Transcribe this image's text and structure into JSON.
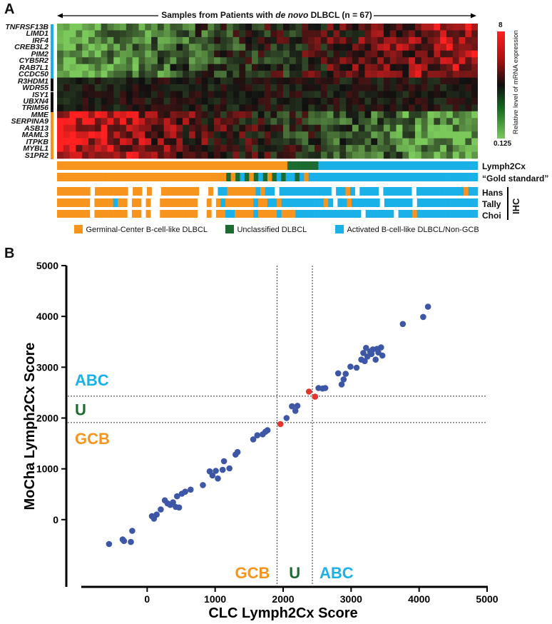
{
  "panel_a": {
    "label": "A",
    "header": {
      "prefix": "Samples from Patients with ",
      "italic": "de novo",
      "suffix": " DLBCL (n = 67)"
    },
    "genes": [
      "TNFRSF13B",
      "LIMD1",
      "IRF4",
      "CREB3L2",
      "PIM2",
      "CYB5R2",
      "RAB7L1",
      "CCDC50",
      "R3HDM1",
      "WDR55",
      "ISY1",
      "UBXN4",
      "TRIM56",
      "MME",
      "SERPINA9",
      "ASB13",
      "MAML3",
      "ITPKB",
      "MYBL1",
      "S1PR2"
    ],
    "gene_groups": [
      "abc",
      "abc",
      "abc",
      "abc",
      "abc",
      "abc",
      "abc",
      "abc",
      "ref",
      "ref",
      "ref",
      "ref",
      "ref",
      "gcb",
      "gcb",
      "gcb",
      "gcb",
      "gcb",
      "gcb",
      "gcb"
    ],
    "colorbar": {
      "max_label": "8",
      "min_label": "0.125",
      "title": "Relative level of mRNA expression"
    },
    "tracks": {
      "lymph2cx_label": "Lymph2Cx",
      "gold_label": "“Gold standard”",
      "hans_label": "Hans",
      "tally_label": "Tally",
      "choi_label": "Choi",
      "ihc_label": "IHC"
    },
    "legend": [
      {
        "label": "Germinal-Center B-cell-like DLBCL",
        "color": "#f7941d"
      },
      {
        "label": "Unclassified DLBCL",
        "color": "#1e6b32"
      },
      {
        "label": "Activated B-cell-like DLBCL/Non-GCB",
        "color": "#1ab1e8"
      }
    ],
    "lymph2cx_calls": "GGGGGGGGGGGGGGGGGGGGGGGGGGGGGGGGGGGGGGGGGGGGGGGGGGGGUUUUUUUAAAAAAAAAAAAAAAAAAAAAAAAAAAAAAAAAAAA",
    "gold_calls": "GGGGGGGGGGGGGGGGGGGGGGGGGGGGGGGGGGGGGUGUAUGUAUGUAUAAUAGAAAAAAAAAAAAAAAAAAAAAAAAAAAAAAAAAAAAA",
    "hans_calls": "GGGGGGG.GGGGGGG.GG.G..GGGGGGGG..G.AAGGGGGGAGAA.AAAAAAAAAAA.AAGA.AAAA.AAAAAA.AAAAAAAAAAGAA",
    "tally_calls": "GGGGGGG.GGGGAGG.GG.G..GGGGGGGG..G.GAGGGGGGAGGAAGAAAAAAAAAGA.AAGAAAAAA.AAAAAA.AAAAAAAAAAAAA",
    "choi_calls": "GGGGGGG.GGGGGGG.GG.G..GGGGGGGG..G.GGAAGGGGAGGGGAGGGAAAAAAAAAAAAAA.AAAAAA.AAAGAAAAAAAAAAAAA"
  },
  "panel_b": {
    "label": "B"
  },
  "chart_data": {
    "type": "scatter",
    "xlabel": "CLC Lymph2Cx Score",
    "ylabel": "MoCha Lymph2Cx Score",
    "xlim": [
      -1000,
      5000
    ],
    "ylim": [
      -1000,
      5000
    ],
    "xticks": [
      0,
      1000,
      2000,
      3000,
      4000,
      5000
    ],
    "yticks": [
      0,
      1000,
      2000,
      3000,
      4000,
      5000
    ],
    "thresholds": {
      "x_low": 1910,
      "x_high": 2430,
      "y_low": 1910,
      "y_high": 2430
    },
    "region_labels": {
      "y_abc": "ABC",
      "y_u": "U",
      "y_gcb": "GCB",
      "x_gcb": "GCB",
      "x_u": "U",
      "x_abc": "ABC"
    },
    "region_colors": {
      "abc": "#1ab1e8",
      "u": "#1e6b32",
      "gcb": "#f7941d"
    },
    "series": [
      {
        "color": "#3d56a6",
        "points": [
          [
            -560,
            -480
          ],
          [
            -360,
            -390
          ],
          [
            -340,
            -420
          ],
          [
            -240,
            -440
          ],
          [
            -220,
            -220
          ],
          [
            70,
            70
          ],
          [
            100,
            20
          ],
          [
            140,
            100
          ],
          [
            200,
            200
          ],
          [
            260,
            380
          ],
          [
            300,
            320
          ],
          [
            340,
            290
          ],
          [
            380,
            340
          ],
          [
            420,
            250
          ],
          [
            440,
            460
          ],
          [
            470,
            240
          ],
          [
            510,
            510
          ],
          [
            560,
            550
          ],
          [
            640,
            590
          ],
          [
            820,
            680
          ],
          [
            920,
            950
          ],
          [
            960,
            870
          ],
          [
            1010,
            960
          ],
          [
            1040,
            810
          ],
          [
            1110,
            980
          ],
          [
            1130,
            1150
          ],
          [
            1210,
            1010
          ],
          [
            1300,
            1280
          ],
          [
            1330,
            1330
          ],
          [
            1560,
            1580
          ],
          [
            1620,
            1660
          ],
          [
            1700,
            1680
          ],
          [
            1740,
            1730
          ],
          [
            1770,
            1760
          ],
          [
            2050,
            2000
          ],
          [
            2130,
            2230
          ],
          [
            2180,
            2140
          ],
          [
            2210,
            2240
          ],
          [
            2520,
            2590
          ],
          [
            2580,
            2580
          ],
          [
            2620,
            2590
          ],
          [
            2810,
            2880
          ],
          [
            2860,
            2660
          ],
          [
            2890,
            2760
          ],
          [
            2920,
            2870
          ],
          [
            2990,
            3010
          ],
          [
            3080,
            2990
          ],
          [
            3150,
            3150
          ],
          [
            3180,
            3280
          ],
          [
            3200,
            3120
          ],
          [
            3220,
            3380
          ],
          [
            3240,
            3210
          ],
          [
            3280,
            3310
          ],
          [
            3300,
            3260
          ],
          [
            3320,
            3350
          ],
          [
            3360,
            3150
          ],
          [
            3380,
            3360
          ],
          [
            3400,
            3290
          ],
          [
            3440,
            3390
          ],
          [
            3460,
            3230
          ],
          [
            3760,
            3850
          ],
          [
            4060,
            3990
          ],
          [
            4130,
            4190
          ]
        ]
      },
      {
        "color": "#e3342f",
        "points": [
          [
            1960,
            1880
          ],
          [
            2380,
            2520
          ],
          [
            2470,
            2420
          ]
        ]
      }
    ]
  }
}
